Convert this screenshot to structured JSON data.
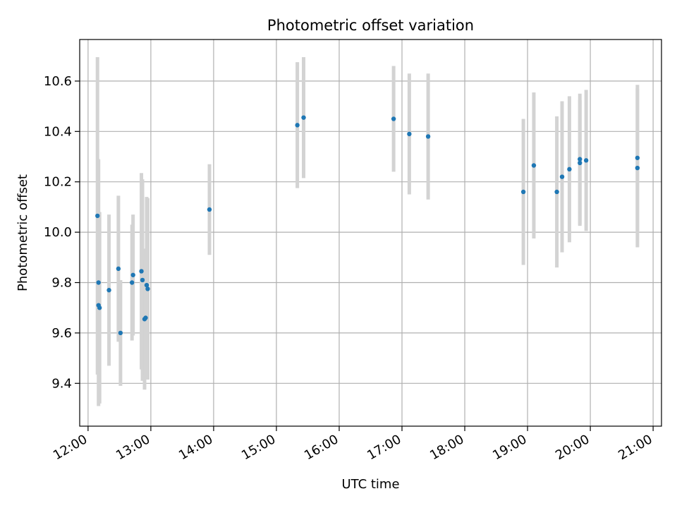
{
  "chart_data": {
    "type": "scatter",
    "title": "Photometric offset variation",
    "xlabel": "UTC time",
    "ylabel": "Photometric offset",
    "xlim": [
      "11:52",
      "21:08"
    ],
    "ylim": [
      9.23,
      10.765
    ],
    "x_ticks": [
      "12:00",
      "13:00",
      "14:00",
      "15:00",
      "16:00",
      "17:00",
      "18:00",
      "19:00",
      "20:00",
      "21:00"
    ],
    "y_ticks": [
      "9.4",
      "9.6",
      "9.8",
      "10.0",
      "10.2",
      "10.4",
      "10.6"
    ],
    "grid": true,
    "colors": {
      "point": "#1f77b4",
      "errorbar": "#d3d3d3",
      "grid": "#b0b0b0",
      "axes": "#000000"
    },
    "points": [
      {
        "x": "12:09",
        "y": 10.065,
        "err": 0.63
      },
      {
        "x": "12:10",
        "y": 9.8,
        "err": 0.49
      },
      {
        "x": "12:10",
        "y": 9.71,
        "err": 0.27
      },
      {
        "x": "12:11",
        "y": 9.7,
        "err": 0.38
      },
      {
        "x": "12:20",
        "y": 9.77,
        "err": 0.3
      },
      {
        "x": "12:29",
        "y": 9.855,
        "err": 0.29
      },
      {
        "x": "12:31",
        "y": 9.6,
        "err": 0.21
      },
      {
        "x": "12:42",
        "y": 9.8,
        "err": 0.23
      },
      {
        "x": "12:43",
        "y": 9.83,
        "err": 0.24
      },
      {
        "x": "12:51",
        "y": 9.845,
        "err": 0.39
      },
      {
        "x": "12:52",
        "y": 9.81,
        "err": 0.4
      },
      {
        "x": "12:54",
        "y": 9.655,
        "err": 0.28
      },
      {
        "x": "12:55",
        "y": 9.66,
        "err": 0.23
      },
      {
        "x": "12:56",
        "y": 9.79,
        "err": 0.35
      },
      {
        "x": "12:57",
        "y": 9.775,
        "err": 0.36
      },
      {
        "x": "13:56",
        "y": 10.09,
        "err": 0.18
      },
      {
        "x": "15:20",
        "y": 10.425,
        "err": 0.25
      },
      {
        "x": "15:26",
        "y": 10.455,
        "err": 0.24
      },
      {
        "x": "16:52",
        "y": 10.45,
        "err": 0.21
      },
      {
        "x": "17:07",
        "y": 10.39,
        "err": 0.24
      },
      {
        "x": "17:25",
        "y": 10.38,
        "err": 0.25
      },
      {
        "x": "18:56",
        "y": 10.16,
        "err": 0.29
      },
      {
        "x": "19:06",
        "y": 10.265,
        "err": 0.29
      },
      {
        "x": "19:28",
        "y": 10.16,
        "err": 0.3
      },
      {
        "x": "19:33",
        "y": 10.22,
        "err": 0.3
      },
      {
        "x": "19:40",
        "y": 10.25,
        "err": 0.29
      },
      {
        "x": "19:50",
        "y": 10.275,
        "err": 0.25
      },
      {
        "x": "19:50",
        "y": 10.29,
        "err": 0.26
      },
      {
        "x": "19:56",
        "y": 10.285,
        "err": 0.28
      },
      {
        "x": "20:45",
        "y": 10.255,
        "err": 0.315
      },
      {
        "x": "20:45",
        "y": 10.295,
        "err": 0.29
      }
    ]
  }
}
